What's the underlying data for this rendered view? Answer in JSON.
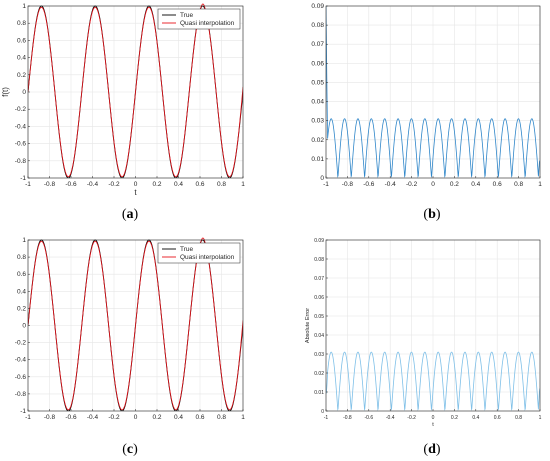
{
  "chart_data": [
    {
      "panel": "a",
      "type": "line",
      "caption_letter": "a",
      "xlabel": "t",
      "ylabel": "f(t)",
      "xlim": [
        -1,
        1
      ],
      "ylim": [
        -1,
        1
      ],
      "xticks": [
        -1,
        -0.8,
        -0.6,
        -0.4,
        -0.2,
        0,
        0.2,
        0.4,
        0.6,
        0.8,
        1
      ],
      "xtick_labels": [
        "-1",
        "-0.8",
        "-0.6",
        "-0.4",
        "-0.2",
        "0",
        "0.2",
        "0.4",
        "0.6",
        "0.8",
        "1"
      ],
      "yticks": [
        -1,
        -0.8,
        -0.6,
        -0.4,
        -0.2,
        0,
        0.2,
        0.4,
        0.6,
        0.8,
        1
      ],
      "ytick_labels": [
        "-1",
        "-0.8",
        "-0.6",
        "-0.4",
        "-0.2",
        "0",
        "0.2",
        "0.4",
        "0.6",
        "0.8",
        "1"
      ],
      "grid": true,
      "legend_position": "top-right",
      "series": [
        {
          "name": "True",
          "color": "#000000",
          "function": "sin(4*pi*t)"
        },
        {
          "name": "Quasi interpolation",
          "color": "#e8141b",
          "function": "sin(4*pi*t)",
          "endpoint_overshoot": true
        }
      ]
    },
    {
      "panel": "b",
      "type": "line",
      "caption_letter": "b",
      "xlabel": "",
      "ylabel": "",
      "xlim": [
        -1,
        1
      ],
      "ylim": [
        0,
        0.09
      ],
      "xticks": [
        -1,
        -0.8,
        -0.6,
        -0.4,
        -0.2,
        0,
        0.2,
        0.4,
        0.6,
        0.8,
        1
      ],
      "xtick_labels": [
        "-1",
        "-0.8",
        "-0.6",
        "-0.4",
        "-0.2",
        "0",
        "0.2",
        "0.4",
        "0.6",
        "0.8",
        "1"
      ],
      "yticks": [
        0,
        0.01,
        0.02,
        0.03,
        0.04,
        0.05,
        0.06,
        0.07,
        0.08,
        0.09
      ],
      "ytick_labels": [
        "0",
        "0.01",
        "0.02",
        "0.03",
        "0.04",
        "0.05",
        "0.06",
        "0.07",
        "0.08",
        "0.09"
      ],
      "grid": true,
      "series": [
        {
          "color": "#2f86c9",
          "peak_value": 0.031,
          "left_endpoint_value": 0.09,
          "right_endpoint_value": 0.009
        }
      ]
    },
    {
      "panel": "c",
      "type": "line",
      "caption_letter": "c",
      "xlabel": "",
      "ylabel": "",
      "xlim": [
        -1,
        1
      ],
      "ylim": [
        -1,
        1
      ],
      "xticks": [
        -1,
        -0.8,
        -0.6,
        -0.4,
        -0.2,
        0,
        0.2,
        0.4,
        0.6,
        0.8,
        1
      ],
      "xtick_labels": [
        "-1",
        "-0.8",
        "-0.6",
        "-0.4",
        "-0.2",
        "0",
        "0.2",
        "0.4",
        "0.6",
        "0.8",
        "1"
      ],
      "yticks": [
        -1,
        -0.8,
        -0.6,
        -0.4,
        -0.2,
        0,
        0.2,
        0.4,
        0.6,
        0.8,
        1
      ],
      "ytick_labels": [
        "-1",
        "-0.8",
        "-0.6",
        "-0.4",
        "-0.2",
        "0",
        "0.2",
        "0.4",
        "0.6",
        "0.8",
        "1"
      ],
      "grid": true,
      "legend_position": "top-right",
      "series": [
        {
          "name": "True",
          "color": "#000000",
          "function": "sin(4*pi*t)"
        },
        {
          "name": "Quasi interpolation",
          "color": "#e8141b",
          "function": "sin(4*pi*t)",
          "endpoint_overshoot": true
        }
      ]
    },
    {
      "panel": "d",
      "type": "line",
      "caption_letter": "d",
      "xlabel": "t",
      "ylabel": "Absolute Error",
      "xlim": [
        -1,
        1
      ],
      "ylim": [
        0,
        0.09
      ],
      "xticks": [
        -1,
        -0.8,
        -0.6,
        -0.4,
        -0.2,
        0,
        0.2,
        0.4,
        0.6,
        0.8,
        1
      ],
      "xtick_labels": [
        "-1",
        "-0.8",
        "-0.6",
        "-0.4",
        "-0.2",
        "0",
        "0.2",
        "0.4",
        "0.6",
        "0.8",
        "1"
      ],
      "yticks": [
        0,
        0.01,
        0.02,
        0.03,
        0.04,
        0.05,
        0.06,
        0.07,
        0.08,
        0.09
      ],
      "ytick_labels": [
        "0",
        "0.01",
        "0.02",
        "0.03",
        "0.04",
        "0.05",
        "0.06",
        "0.07",
        "0.08",
        "0.09"
      ],
      "grid": true,
      "series": [
        {
          "color": "#7fc0e8",
          "peak_value": 0.031,
          "left_endpoint_value": 0.009,
          "right_endpoint_value": 0.012
        }
      ]
    }
  ]
}
